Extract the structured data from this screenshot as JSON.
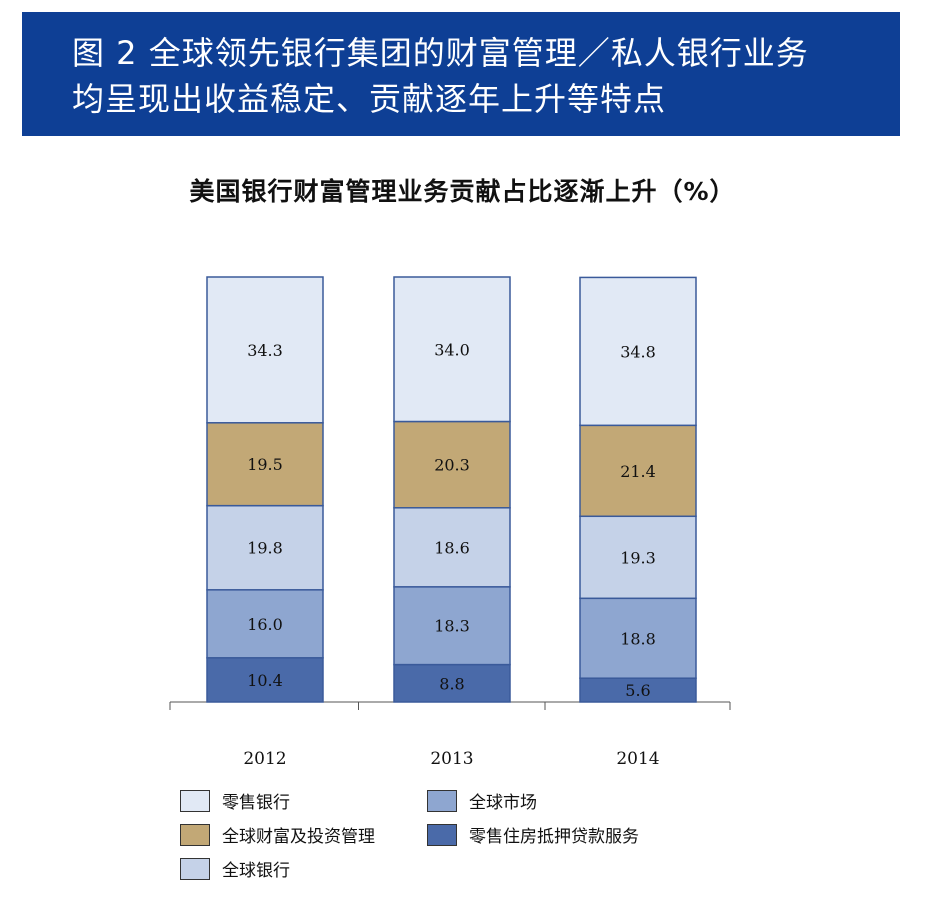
{
  "header": {
    "line1": "图 2 全球领先银行集团的财富管理／私人银行业务",
    "line2": "均呈现出收益稳定、贡献逐年上升等特点"
  },
  "chart_data": {
    "type": "bar",
    "stacked": true,
    "title": "美国银行财富管理业务贡献占比逐渐上升（%）",
    "xlabel": "",
    "ylabel": "",
    "categories": [
      "2012",
      "2013",
      "2014"
    ],
    "series": [
      {
        "name": "零售住房抵押贷款服务",
        "color": "#4a6aa9",
        "values": [
          10.4,
          8.8,
          5.6
        ]
      },
      {
        "name": "全球市场",
        "color": "#8ea6d0",
        "values": [
          16.0,
          18.3,
          18.8
        ]
      },
      {
        "name": "全球银行",
        "color": "#c5d2e8",
        "values": [
          19.8,
          18.6,
          19.3
        ]
      },
      {
        "name": "全球财富及投资管理",
        "color": "#c2a876",
        "values": [
          19.5,
          20.3,
          21.4
        ]
      },
      {
        "name": "零售银行",
        "color": "#e1e9f5",
        "values": [
          34.3,
          34.0,
          34.8
        ]
      }
    ],
    "value_labels": [
      [
        "10.4",
        "8.8",
        "5.6"
      ],
      [
        "16.0",
        "18.3",
        "18.8"
      ],
      [
        "19.8",
        "18.6",
        "19.3"
      ],
      [
        "19.5",
        "20.3",
        "21.4"
      ],
      [
        "34.3",
        "34.0",
        "34.8"
      ]
    ],
    "legend_position": "bottom"
  },
  "legend": {
    "items": [
      {
        "label": "零售银行",
        "color": "#e1e9f5"
      },
      {
        "label": "全球市场",
        "color": "#8ea6d0"
      },
      {
        "label": "全球财富及投资管理",
        "color": "#c2a876"
      },
      {
        "label": "零售住房抵押贷款服务",
        "color": "#4a6aa9"
      },
      {
        "label": "全球银行",
        "color": "#c5d2e8"
      }
    ]
  }
}
